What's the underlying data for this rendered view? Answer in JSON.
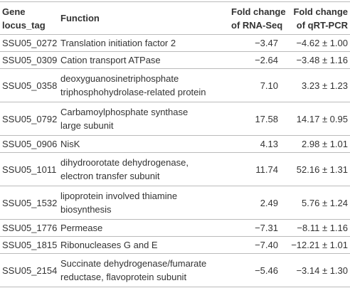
{
  "table": {
    "header": [
      [
        "Gene",
        "locus_tag"
      ],
      [
        "Function"
      ],
      [
        "Fold change",
        "of RNA-Seq"
      ],
      [
        "Fold change",
        "of qRT-PCR"
      ]
    ],
    "rows": [
      [
        [
          "SSU05_0272"
        ],
        [
          "Translation initiation factor 2"
        ],
        [
          "−3.47"
        ],
        [
          "−4.62 ± 1.00"
        ]
      ],
      [
        [
          "SSU05_0309"
        ],
        [
          "Cation transport ATPase"
        ],
        [
          "−2.64"
        ],
        [
          "−3.48 ± 1.16"
        ]
      ],
      [
        [
          "SSU05_0358"
        ],
        [
          "deoxyguanosinetriphosphate",
          "triphosphohydrolase-related protein"
        ],
        [
          "7.10"
        ],
        [
          "3.23 ± 1.23"
        ]
      ],
      [
        [
          "SSU05_0792"
        ],
        [
          "Carbamoylphosphate synthase",
          "large subunit"
        ],
        [
          "17.58"
        ],
        [
          "14.17 ± 0.95"
        ]
      ],
      [
        [
          "SSU05_0906"
        ],
        [
          "NisK"
        ],
        [
          "4.13"
        ],
        [
          "2.98 ± 1.01"
        ]
      ],
      [
        [
          "SSU05_1011"
        ],
        [
          "dihydroorotate dehydrogenase,",
          "electron transfer subunit"
        ],
        [
          "11.74"
        ],
        [
          "52.16 ± 1.31"
        ]
      ],
      [
        [
          "SSU05_1532"
        ],
        [
          "lipoprotein involved thiamine",
          "biosynthesis"
        ],
        [
          "2.49"
        ],
        [
          "5.76 ± 1.24"
        ]
      ],
      [
        [
          "SSU05_1776"
        ],
        [
          "Permease"
        ],
        [
          "−7.31"
        ],
        [
          "−8.11 ± 1.16"
        ]
      ],
      [
        [
          "SSU05_1815"
        ],
        [
          "Ribonucleases G and E"
        ],
        [
          "−7.40"
        ],
        [
          "−12.21 ± 1.01"
        ]
      ],
      [
        [
          "SSU05_2154"
        ],
        [
          "Succinate dehydrogenase/fumarate",
          "reductase, flavoprotein subunit"
        ],
        [
          "−5.46"
        ],
        [
          "−3.14 ± 1.30"
        ]
      ]
    ]
  }
}
